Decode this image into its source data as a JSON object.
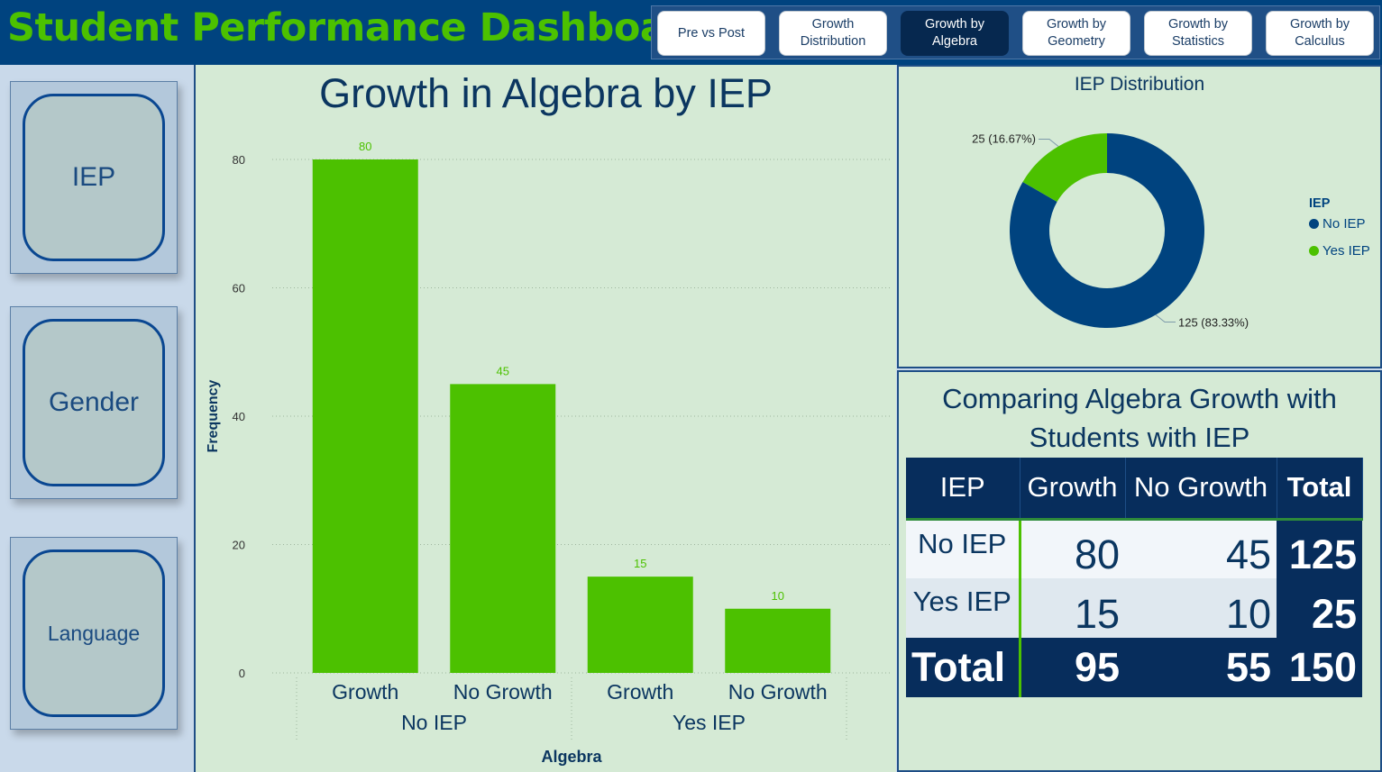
{
  "header": {
    "title": "Student Performance Dashboard",
    "nav": [
      {
        "label": "Pre vs Post",
        "active": false
      },
      {
        "label": "Growth\nDistribution",
        "active": false
      },
      {
        "label": "Growth by\nAlgebra",
        "active": true
      },
      {
        "label": "Growth by\nGeometry",
        "active": false
      },
      {
        "label": "Growth by\nStatistics",
        "active": false
      },
      {
        "label": "Growth by\nCalculus",
        "active": false
      }
    ]
  },
  "sidebar": {
    "items": [
      {
        "label": "IEP"
      },
      {
        "label": "Gender"
      },
      {
        "label": "Language"
      }
    ]
  },
  "bar_panel": {
    "title": "Growth in Algebra by IEP"
  },
  "donut_panel": {
    "title": "IEP Distribution",
    "legend_title": "IEP"
  },
  "table_panel": {
    "title_line1": "Comparing Algebra Growth with",
    "title_line2": "Students with IEP",
    "headers": [
      "IEP",
      "Growth",
      "No Growth",
      "Total"
    ],
    "rows": [
      {
        "label": "No IEP",
        "growth": "80",
        "no_growth": "45",
        "total": "125"
      },
      {
        "label": "Yes IEP",
        "growth": "15",
        "no_growth": "10",
        "total": "25"
      }
    ],
    "totals": {
      "label": "Total",
      "growth": "95",
      "no_growth": "55",
      "total": "150"
    }
  },
  "colors": {
    "bar": "#4cc100",
    "no_iep": "#00437f",
    "yes_iep": "#4cc100"
  },
  "chart_data": [
    {
      "type": "bar",
      "title": "Growth in Algebra by IEP",
      "xlabel": "Algebra",
      "ylabel": "Frequency",
      "groups": [
        "No IEP",
        "No IEP",
        "Yes IEP",
        "Yes IEP"
      ],
      "group_labels": [
        "No IEP",
        "Yes IEP"
      ],
      "categories": [
        "Growth",
        "No Growth",
        "Growth",
        "No Growth"
      ],
      "values": [
        80,
        45,
        15,
        10
      ],
      "ylim": [
        0,
        80
      ],
      "yticks": [
        0,
        20,
        40,
        60,
        80
      ],
      "data_labels": true,
      "grid": true
    },
    {
      "type": "pie",
      "title": "IEP Distribution",
      "donut": true,
      "legend_title": "IEP",
      "legend_position": "right",
      "labels": [
        "No IEP",
        "Yes IEP"
      ],
      "values": [
        125,
        25
      ],
      "data_labels": [
        "125 (83.33%)",
        "25 (16.67%)"
      ]
    }
  ]
}
